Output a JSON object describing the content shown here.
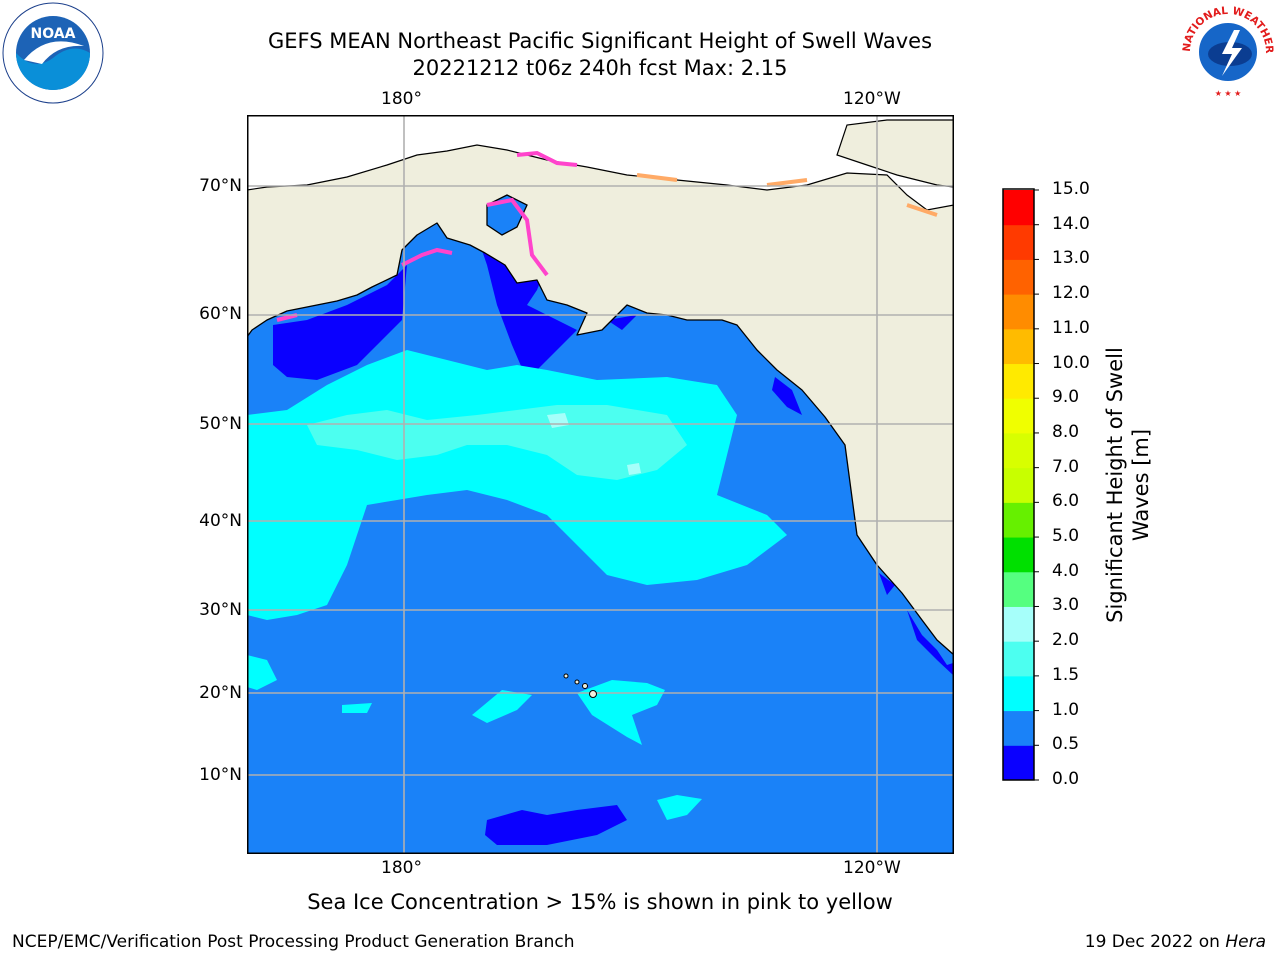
{
  "header": {
    "title_line1": "GEFS MEAN Northeast Pacific Significant Height of Swell Waves",
    "title_line2": "20221212 t06z 240h fcst   Max: 2.15"
  },
  "map": {
    "lon_labels": [
      "180°",
      "120°W"
    ],
    "lat_labels": [
      "70°N",
      "60°N",
      "50°N",
      "40°N",
      "30°N",
      "20°N",
      "10°N"
    ]
  },
  "colorbar": {
    "label": "Significant Height of Swell Waves [m]",
    "ticks": [
      "15.0",
      "14.0",
      "13.0",
      "12.0",
      "11.0",
      "10.0",
      "9.0",
      "8.0",
      "7.0",
      "6.0",
      "5.0",
      "4.0",
      "3.0",
      "2.0",
      "1.5",
      "1.0",
      "0.5",
      "0.0"
    ],
    "bins": [
      {
        "from": 0.0,
        "to": 0.5,
        "color": "#0a00ff"
      },
      {
        "from": 0.5,
        "to": 1.0,
        "color": "#1a82f8"
      },
      {
        "from": 1.0,
        "to": 1.5,
        "color": "#00ffff"
      },
      {
        "from": 1.5,
        "to": 2.0,
        "color": "#4cfff0"
      },
      {
        "from": 2.0,
        "to": 3.0,
        "color": "#a6fffa"
      },
      {
        "from": 3.0,
        "to": 4.0,
        "color": "#55ff80"
      },
      {
        "from": 4.0,
        "to": 5.0,
        "color": "#00e000"
      },
      {
        "from": 5.0,
        "to": 6.0,
        "color": "#66f000"
      },
      {
        "from": 6.0,
        "to": 7.0,
        "color": "#c8ff00"
      },
      {
        "from": 7.0,
        "to": 8.0,
        "color": "#d8ff00"
      },
      {
        "from": 8.0,
        "to": 9.0,
        "color": "#f0ff00"
      },
      {
        "from": 9.0,
        "to": 10.0,
        "color": "#ffea00"
      },
      {
        "from": 10.0,
        "to": 11.0,
        "color": "#ffbb00"
      },
      {
        "from": 11.0,
        "to": 12.0,
        "color": "#ff8c00"
      },
      {
        "from": 12.0,
        "to": 13.0,
        "color": "#ff6200"
      },
      {
        "from": 13.0,
        "to": 14.0,
        "color": "#ff3a00"
      },
      {
        "from": 14.0,
        "to": 15.0,
        "color": "#ff0000"
      }
    ]
  },
  "colors": {
    "ocean_base": "#1a82f8",
    "land": "#efeedd",
    "ice_pink": "#ff44cc",
    "ice_orange": "#ffaa66"
  },
  "caption": "Sea Ice Concentration > 15% is shown in pink to yellow",
  "footer": {
    "left": "NCEP/EMC/Verification Post Processing Product Generation Branch",
    "right_date": "19 Dec 2022 on ",
    "right_host": "Hera"
  },
  "logos": {
    "noaa": "NOAA",
    "nws": "NATIONAL WEATHER SERVICE"
  }
}
